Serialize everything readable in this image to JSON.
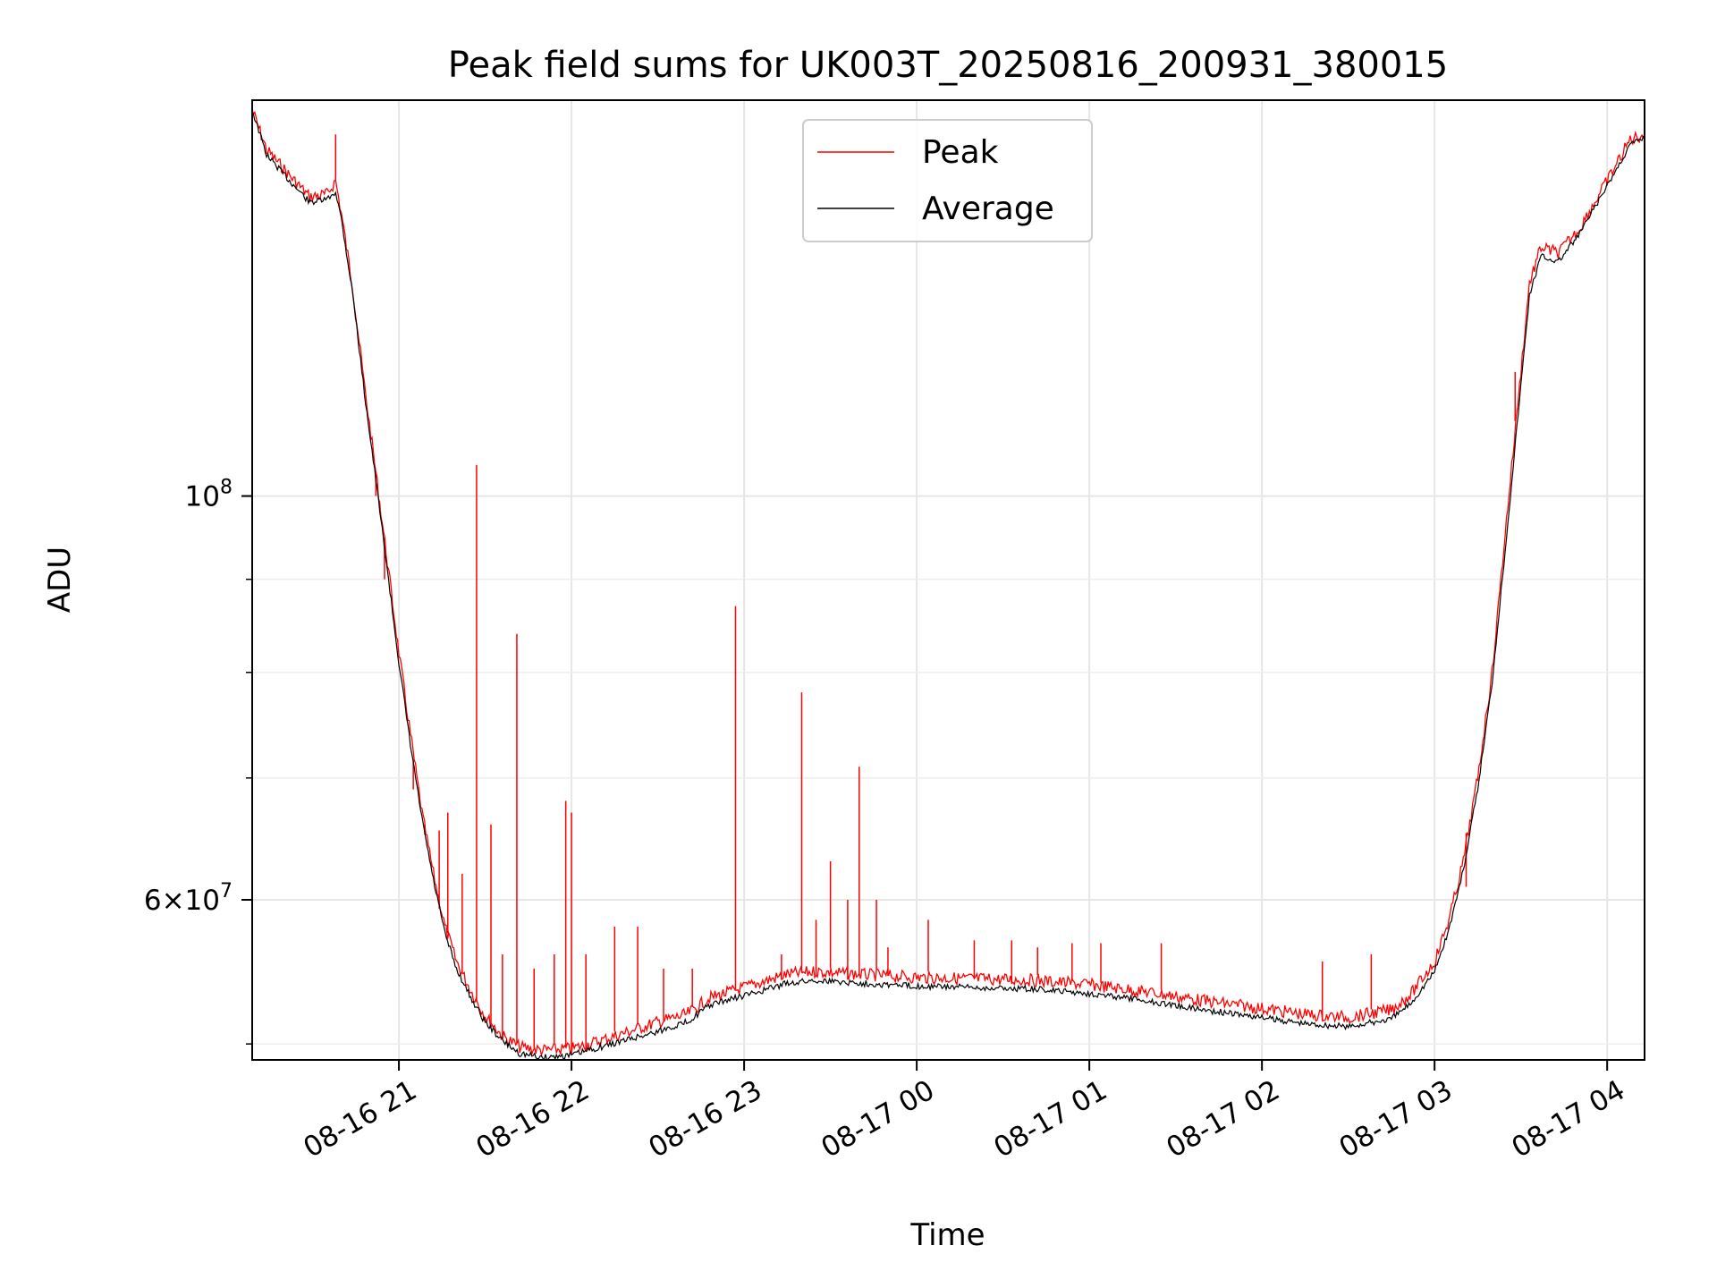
{
  "chart_data": {
    "type": "line",
    "title": "Peak field sums for UK003T_20250816_200931_380015",
    "xlabel": "Time",
    "ylabel": "ADU",
    "y_scale": "log",
    "ylim": [
      49000000,
      165000000
    ],
    "xlim": [
      "2025-08-16 20:09",
      "2025-08-17 04:13"
    ],
    "grid": true,
    "legend_position": "top-center",
    "x_ticks": [
      {
        "t": "2025-08-16 21:00",
        "label": "08-16 21"
      },
      {
        "t": "2025-08-16 22:00",
        "label": "08-16 22"
      },
      {
        "t": "2025-08-16 23:00",
        "label": "08-16 23"
      },
      {
        "t": "2025-08-17 00:00",
        "label": "08-17 00"
      },
      {
        "t": "2025-08-17 01:00",
        "label": "08-17 01"
      },
      {
        "t": "2025-08-17 02:00",
        "label": "08-17 02"
      },
      {
        "t": "2025-08-17 03:00",
        "label": "08-17 03"
      },
      {
        "t": "2025-08-17 04:00",
        "label": "08-17 04"
      }
    ],
    "y_major_ticks": [
      {
        "value": 100000000,
        "base": "10",
        "exp": "8",
        "coef": ""
      },
      {
        "value": 60000000,
        "base": "10",
        "exp": "7",
        "coef": "6"
      }
    ],
    "y_minor_ticks": [
      50000000,
      70000000,
      80000000,
      90000000
    ],
    "series": [
      {
        "name": "Peak",
        "color": "#ff0000",
        "points": [
          [
            "2025-08-16 20:09",
            163000000
          ],
          [
            "2025-08-16 20:14",
            155000000
          ],
          [
            "2025-08-16 20:22",
            150000000
          ],
          [
            "2025-08-16 20:29",
            146000000
          ],
          [
            "2025-08-16 20:35",
            146500000
          ],
          [
            "2025-08-16 20:38",
            149000000
          ],
          [
            "2025-08-16 20:40",
            143000000
          ],
          [
            "2025-08-16 20:44",
            130000000
          ],
          [
            "2025-08-16 20:48",
            115000000
          ],
          [
            "2025-08-16 20:52",
            103000000
          ],
          [
            "2025-08-16 20:56",
            92000000
          ],
          [
            "2025-08-16 21:00",
            82000000
          ],
          [
            "2025-08-16 21:04",
            74000000
          ],
          [
            "2025-08-16 21:08",
            67000000
          ],
          [
            "2025-08-16 21:12",
            62000000
          ],
          [
            "2025-08-16 21:16",
            58000000
          ],
          [
            "2025-08-16 21:20",
            55500000
          ],
          [
            "2025-08-16 21:25",
            53500000
          ],
          [
            "2025-08-16 21:30",
            51800000
          ],
          [
            "2025-08-16 21:36",
            50500000
          ],
          [
            "2025-08-16 21:42",
            49800000
          ],
          [
            "2025-08-16 21:50",
            49600000
          ],
          [
            "2025-08-16 22:00",
            49700000
          ],
          [
            "2025-08-16 22:10",
            50200000
          ],
          [
            "2025-08-16 22:20",
            50800000
          ],
          [
            "2025-08-16 22:30",
            51400000
          ],
          [
            "2025-08-16 22:40",
            51900000
          ],
          [
            "2025-08-16 22:48",
            53000000
          ],
          [
            "2025-08-16 22:55",
            53400000
          ],
          [
            "2025-08-16 23:05",
            54000000
          ],
          [
            "2025-08-16 23:15",
            54600000
          ],
          [
            "2025-08-16 23:25",
            54800000
          ],
          [
            "2025-08-16 23:40",
            54600000
          ],
          [
            "2025-08-17 00:00",
            54400000
          ],
          [
            "2025-08-17 00:20",
            54300000
          ],
          [
            "2025-08-17 00:40",
            54200000
          ],
          [
            "2025-08-17 01:00",
            53900000
          ],
          [
            "2025-08-17 01:20",
            53400000
          ],
          [
            "2025-08-17 01:40",
            52800000
          ],
          [
            "2025-08-17 02:00",
            52300000
          ],
          [
            "2025-08-17 02:15",
            51900000
          ],
          [
            "2025-08-17 02:30",
            51700000
          ],
          [
            "2025-08-17 02:45",
            52200000
          ],
          [
            "2025-08-17 02:52",
            53300000
          ],
          [
            "2025-08-17 03:00",
            55500000
          ],
          [
            "2025-08-17 03:05",
            58500000
          ],
          [
            "2025-08-17 03:10",
            63000000
          ],
          [
            "2025-08-17 03:15",
            70000000
          ],
          [
            "2025-08-17 03:20",
            80000000
          ],
          [
            "2025-08-17 03:25",
            97000000
          ],
          [
            "2025-08-17 03:30",
            117000000
          ],
          [
            "2025-08-17 03:33",
            131000000
          ],
          [
            "2025-08-17 03:37",
            137000000
          ],
          [
            "2025-08-17 03:43",
            136000000
          ],
          [
            "2025-08-17 03:50",
            140000000
          ],
          [
            "2025-08-17 04:00",
            149000000
          ],
          [
            "2025-08-17 04:08",
            157000000
          ],
          [
            "2025-08-17 04:13",
            158000000
          ]
        ],
        "spikes": [
          [
            "2025-08-16 20:38",
            158000000
          ],
          [
            "2025-08-16 20:52",
            100000000
          ],
          [
            "2025-08-16 20:55",
            90000000
          ],
          [
            "2025-08-16 21:05",
            69000000
          ],
          [
            "2025-08-16 21:09",
            66000000
          ],
          [
            "2025-08-16 21:14",
            65500000
          ],
          [
            "2025-08-16 21:17",
            67000000
          ],
          [
            "2025-08-16 21:22",
            62000000
          ],
          [
            "2025-08-16 21:27",
            104000000
          ],
          [
            "2025-08-16 21:32",
            66000000
          ],
          [
            "2025-08-16 21:36",
            56000000
          ],
          [
            "2025-08-16 21:41",
            84000000
          ],
          [
            "2025-08-16 21:47",
            55000000
          ],
          [
            "2025-08-16 21:54",
            56000000
          ],
          [
            "2025-08-16 21:58",
            68000000
          ],
          [
            "2025-08-16 22:00",
            67000000
          ],
          [
            "2025-08-16 22:05",
            56000000
          ],
          [
            "2025-08-16 22:15",
            58000000
          ],
          [
            "2025-08-16 22:23",
            58000000
          ],
          [
            "2025-08-16 22:32",
            55000000
          ],
          [
            "2025-08-16 22:42",
            55000000
          ],
          [
            "2025-08-16 22:57",
            87000000
          ],
          [
            "2025-08-16 23:13",
            56000000
          ],
          [
            "2025-08-16 23:20",
            78000000
          ],
          [
            "2025-08-16 23:25",
            58500000
          ],
          [
            "2025-08-16 23:30",
            63000000
          ],
          [
            "2025-08-16 23:36",
            60000000
          ],
          [
            "2025-08-16 23:40",
            71000000
          ],
          [
            "2025-08-16 23:46",
            60000000
          ],
          [
            "2025-08-16 23:50",
            56500000
          ],
          [
            "2025-08-17 00:04",
            58500000
          ],
          [
            "2025-08-17 00:20",
            57000000
          ],
          [
            "2025-08-17 00:33",
            57000000
          ],
          [
            "2025-08-17 00:42",
            56500000
          ],
          [
            "2025-08-17 00:54",
            56800000
          ],
          [
            "2025-08-17 01:04",
            56800000
          ],
          [
            "2025-08-17 01:25",
            56800000
          ],
          [
            "2025-08-17 02:21",
            55500000
          ],
          [
            "2025-08-17 02:38",
            56000000
          ],
          [
            "2025-08-17 03:11",
            61000000
          ],
          [
            "2025-08-17 03:28",
            117000000
          ]
        ]
      },
      {
        "name": "Average",
        "color": "#000000",
        "points": [
          [
            "2025-08-16 20:09",
            163000000
          ],
          [
            "2025-08-16 20:14",
            154000000
          ],
          [
            "2025-08-16 20:22",
            149000000
          ],
          [
            "2025-08-16 20:29",
            145000000
          ],
          [
            "2025-08-16 20:35",
            145500000
          ],
          [
            "2025-08-16 20:38",
            147000000
          ],
          [
            "2025-08-16 20:40",
            142000000
          ],
          [
            "2025-08-16 20:44",
            129000000
          ],
          [
            "2025-08-16 20:48",
            114000000
          ],
          [
            "2025-08-16 20:52",
            102000000
          ],
          [
            "2025-08-16 20:56",
            91000000
          ],
          [
            "2025-08-16 21:00",
            81000000
          ],
          [
            "2025-08-16 21:04",
            73000000
          ],
          [
            "2025-08-16 21:08",
            66500000
          ],
          [
            "2025-08-16 21:12",
            61500000
          ],
          [
            "2025-08-16 21:16",
            57500000
          ],
          [
            "2025-08-16 21:20",
            55000000
          ],
          [
            "2025-08-16 21:25",
            53000000
          ],
          [
            "2025-08-16 21:30",
            51400000
          ],
          [
            "2025-08-16 21:36",
            50200000
          ],
          [
            "2025-08-16 21:42",
            49400000
          ],
          [
            "2025-08-16 21:50",
            49150000
          ],
          [
            "2025-08-16 22:00",
            49300000
          ],
          [
            "2025-08-16 22:10",
            49800000
          ],
          [
            "2025-08-16 22:20",
            50300000
          ],
          [
            "2025-08-16 22:30",
            50800000
          ],
          [
            "2025-08-16 22:40",
            51400000
          ],
          [
            "2025-08-16 22:48",
            52500000
          ],
          [
            "2025-08-16 22:55",
            52900000
          ],
          [
            "2025-08-16 23:05",
            53400000
          ],
          [
            "2025-08-16 23:15",
            54000000
          ],
          [
            "2025-08-16 23:25",
            54200000
          ],
          [
            "2025-08-16 23:40",
            54000000
          ],
          [
            "2025-08-17 00:00",
            53800000
          ],
          [
            "2025-08-17 00:20",
            53700000
          ],
          [
            "2025-08-17 00:40",
            53600000
          ],
          [
            "2025-08-17 01:00",
            53300000
          ],
          [
            "2025-08-17 01:20",
            52800000
          ],
          [
            "2025-08-17 01:40",
            52200000
          ],
          [
            "2025-08-17 02:00",
            51700000
          ],
          [
            "2025-08-17 02:15",
            51300000
          ],
          [
            "2025-08-17 02:30",
            51100000
          ],
          [
            "2025-08-17 02:45",
            51600000
          ],
          [
            "2025-08-17 02:52",
            52700000
          ],
          [
            "2025-08-17 03:00",
            54800000
          ],
          [
            "2025-08-17 03:05",
            57800000
          ],
          [
            "2025-08-17 03:10",
            62300000
          ],
          [
            "2025-08-17 03:15",
            69000000
          ],
          [
            "2025-08-17 03:20",
            79000000
          ],
          [
            "2025-08-17 03:25",
            95000000
          ],
          [
            "2025-08-17 03:30",
            115000000
          ],
          [
            "2025-08-17 03:33",
            129000000
          ],
          [
            "2025-08-17 03:37",
            135500000
          ],
          [
            "2025-08-17 03:43",
            134500000
          ],
          [
            "2025-08-17 03:50",
            139000000
          ],
          [
            "2025-08-17 04:00",
            148000000
          ],
          [
            "2025-08-17 04:08",
            156000000
          ],
          [
            "2025-08-17 04:13",
            157500000
          ]
        ]
      }
    ]
  }
}
